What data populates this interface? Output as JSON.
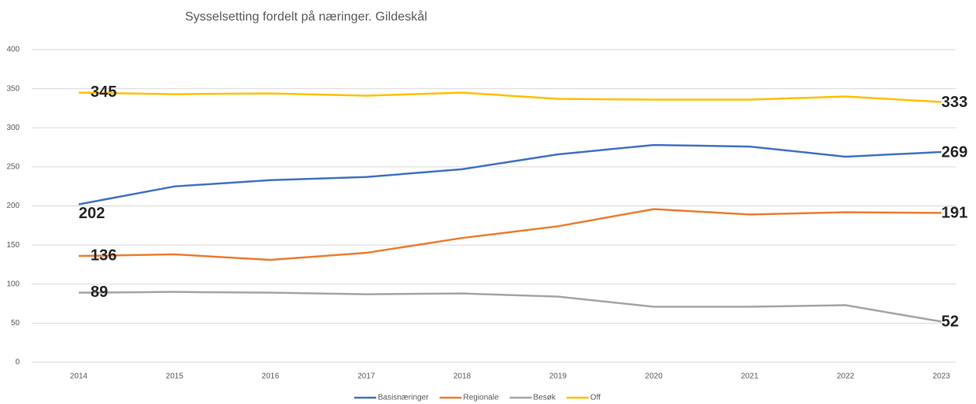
{
  "chart_data": {
    "type": "line",
    "title": "Sysselsetting fordelt på næringer. Gildeskål",
    "categories": [
      "2014",
      "2015",
      "2016",
      "2017",
      "2018",
      "2019",
      "2020",
      "2021",
      "2022",
      "2023"
    ],
    "series": [
      {
        "name": "Basisnæringer",
        "color": "#4472c4",
        "values": [
          202,
          225,
          233,
          237,
          247,
          266,
          278,
          276,
          263,
          269
        ]
      },
      {
        "name": "Regionale",
        "color": "#ed7d31",
        "values": [
          136,
          138,
          131,
          140,
          159,
          174,
          196,
          189,
          192,
          191
        ]
      },
      {
        "name": "Besøk",
        "color": "#a5a5a5",
        "values": [
          89,
          90,
          89,
          87,
          88,
          84,
          71,
          71,
          73,
          52
        ]
      },
      {
        "name": "Off",
        "color": "#ffc000",
        "values": [
          345,
          343,
          344,
          341,
          345,
          337,
          336,
          336,
          340,
          333
        ]
      }
    ],
    "ylim": [
      0,
      400
    ],
    "yticks": [
      0,
      50,
      100,
      150,
      200,
      250,
      300,
      350,
      400
    ],
    "grid": true,
    "legend": "bottom"
  }
}
